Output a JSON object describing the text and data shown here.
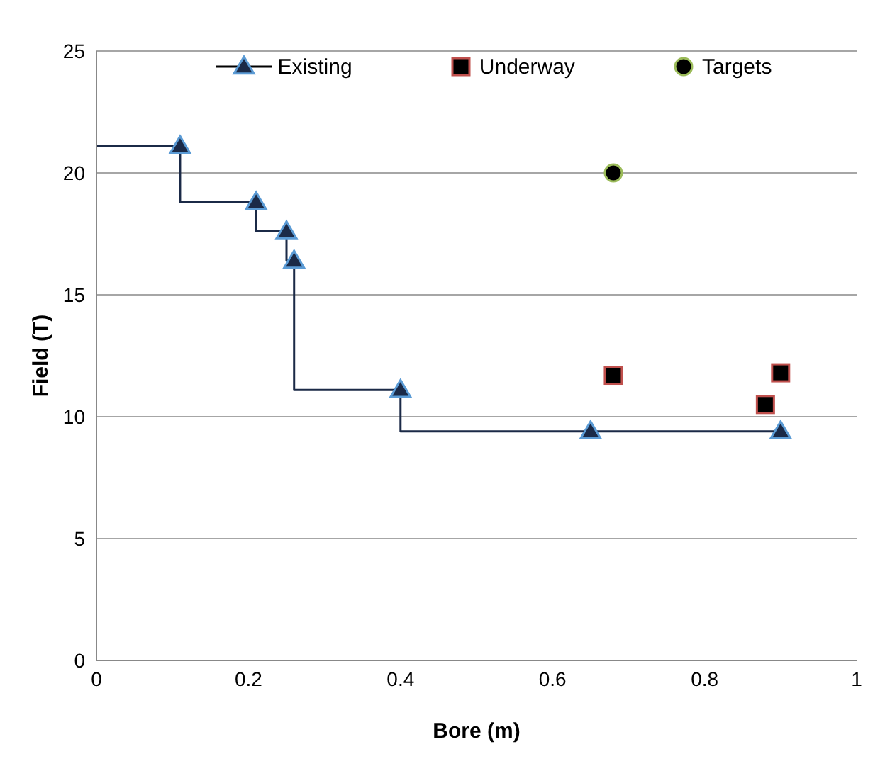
{
  "chart_data": {
    "type": "scatter",
    "xlabel": "Bore (m)",
    "ylabel": "Field (T)",
    "xlim": [
      0,
      1
    ],
    "xticks": [
      0,
      0.2,
      0.4,
      0.6,
      0.8,
      1
    ],
    "ylim": [
      0,
      25
    ],
    "yticks": [
      0,
      5,
      10,
      15,
      20,
      25
    ],
    "grid": "y",
    "legend": "top",
    "series": [
      {
        "name": "Existing",
        "type": "step",
        "marker": "triangle",
        "color": "#1b2a47",
        "x": [
          0.11,
          0.21,
          0.25,
          0.26,
          0.4,
          0.65,
          0.9
        ],
        "values": [
          21.1,
          18.8,
          17.6,
          16.4,
          11.1,
          9.4,
          9.4
        ]
      },
      {
        "type": "line",
        "marker": "none",
        "color": "#1b2a47",
        "x": [
          0,
          0.11
        ],
        "values": [
          21.1,
          21.1
        ]
      },
      {
        "name": "Underway",
        "marker": "square",
        "color": "#000000",
        "x": [
          0.68,
          0.88,
          0.9
        ],
        "values": [
          11.7,
          10.5,
          11.8
        ]
      },
      {
        "name": "Targets",
        "marker": "circle",
        "color": "#000000",
        "x": [
          0.68
        ],
        "values": [
          20.0
        ]
      }
    ]
  }
}
